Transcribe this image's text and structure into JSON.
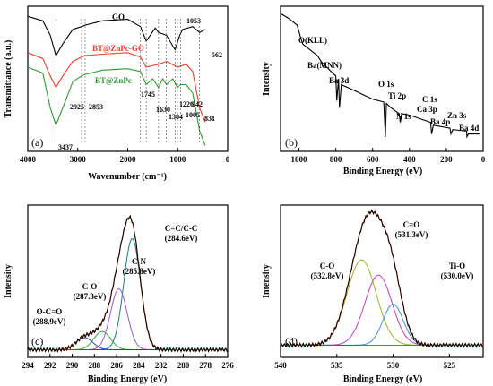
{
  "chart_data": [
    {
      "panel": "(a)",
      "type": "line",
      "xlabel": "Wavenumber (cm⁻¹)",
      "ylabel": "Transmittance (a.u.)",
      "xlim": [
        4000,
        0
      ],
      "x_ticks": [
        "4000",
        "3000",
        "2000",
        "1000",
        "0"
      ],
      "series": [
        {
          "name": "GO",
          "color": "#000000",
          "points": [
            [
              4000,
              0.93
            ],
            [
              3700,
              0.9
            ],
            [
              3550,
              0.8
            ],
            [
              3437,
              0.66
            ],
            [
              3300,
              0.74
            ],
            [
              3100,
              0.84
            ],
            [
              2925,
              0.86
            ],
            [
              2853,
              0.87
            ],
            [
              2500,
              0.9
            ],
            [
              2000,
              0.91
            ],
            [
              1745,
              0.86
            ],
            [
              1630,
              0.76
            ],
            [
              1450,
              0.85
            ],
            [
              1384,
              0.82
            ],
            [
              1226,
              0.8
            ],
            [
              1053,
              0.7
            ],
            [
              960,
              0.8
            ],
            [
              900,
              0.84
            ],
            [
              700,
              0.86
            ],
            [
              562,
              0.82
            ],
            [
              450,
              0.84
            ]
          ]
        },
        {
          "name": "BT@ZnPc-GO",
          "color": "#e8402f",
          "points": [
            [
              4000,
              0.68
            ],
            [
              3700,
              0.64
            ],
            [
              3550,
              0.52
            ],
            [
              3437,
              0.44
            ],
            [
              3300,
              0.52
            ],
            [
              3100,
              0.62
            ],
            [
              2925,
              0.65
            ],
            [
              2853,
              0.66
            ],
            [
              2500,
              0.67
            ],
            [
              2000,
              0.68
            ],
            [
              1745,
              0.65
            ],
            [
              1630,
              0.58
            ],
            [
              1384,
              0.6
            ],
            [
              1226,
              0.62
            ],
            [
              1005,
              0.58
            ],
            [
              831,
              0.6
            ],
            [
              700,
              0.55
            ],
            [
              562,
              0.3
            ],
            [
              450,
              0.2
            ]
          ]
        },
        {
          "name": "BT@ZnPc",
          "color": "#2e9b2e",
          "points": [
            [
              4000,
              0.58
            ],
            [
              3700,
              0.54
            ],
            [
              3550,
              0.3
            ],
            [
              3437,
              0.18
            ],
            [
              3300,
              0.3
            ],
            [
              3100,
              0.48
            ],
            [
              2925,
              0.52
            ],
            [
              2853,
              0.53
            ],
            [
              2500,
              0.56
            ],
            [
              2000,
              0.57
            ],
            [
              1745,
              0.55
            ],
            [
              1630,
              0.46
            ],
            [
              1500,
              0.5
            ],
            [
              1384,
              0.44
            ],
            [
              1300,
              0.5
            ],
            [
              1226,
              0.46
            ],
            [
              1100,
              0.5
            ],
            [
              1005,
              0.44
            ],
            [
              942,
              0.46
            ],
            [
              831,
              0.46
            ],
            [
              700,
              0.4
            ],
            [
              562,
              0.14
            ],
            [
              450,
              0.04
            ]
          ]
        }
      ],
      "markers": [
        "3437",
        "2925",
        "2853",
        "1745",
        "1630",
        "1384",
        "1226",
        "1005",
        "942",
        "831",
        "1053",
        "562"
      ]
    },
    {
      "panel": "(b)",
      "type": "line",
      "xlabel": "Binding Energy (eV)",
      "ylabel": "Intensity",
      "xlim": [
        1100,
        0
      ],
      "x_ticks": [
        "1000",
        "800",
        "600",
        "400",
        "200",
        "0"
      ],
      "series": [
        {
          "name": "",
          "color": "#000000",
          "points": [
            [
              1100,
              0.95
            ],
            [
              1060,
              0.92
            ],
            [
              1010,
              0.87
            ],
            [
              990,
              0.78
            ],
            [
              980,
              0.74
            ],
            [
              960,
              0.72
            ],
            [
              900,
              0.66
            ],
            [
              880,
              0.62
            ],
            [
              850,
              0.58
            ],
            [
              800,
              0.52
            ],
            [
              795,
              0.35
            ],
            [
              785,
              0.5
            ],
            [
              780,
              0.3
            ],
            [
              770,
              0.46
            ],
            [
              700,
              0.42
            ],
            [
              600,
              0.36
            ],
            [
              540,
              0.34
            ],
            [
              531,
              0.1
            ],
            [
              525,
              0.33
            ],
            [
              500,
              0.3
            ],
            [
              456,
              0.26
            ],
            [
              450,
              0.2
            ],
            [
              440,
              0.26
            ],
            [
              400,
              0.25
            ],
            [
              285,
              0.2
            ],
            [
              280,
              0.12
            ],
            [
              270,
              0.18
            ],
            [
              180,
              0.16
            ],
            [
              175,
              0.12
            ],
            [
              165,
              0.15
            ],
            [
              90,
              0.14
            ],
            [
              88,
              0.1
            ],
            [
              80,
              0.12
            ],
            [
              20,
              0.12
            ]
          ]
        }
      ],
      "peaks": [
        "O(KLL)",
        "Ba(MNN)",
        "Ba 3d",
        "O 1s",
        "Ti 2p",
        "N 1s",
        "Ca 3p",
        "C 1s",
        "Ba 4p",
        "Zn 3s",
        "Ba 4d"
      ]
    },
    {
      "panel": "(c)",
      "type": "line",
      "xlabel": "Binding Energy (eV)",
      "ylabel": "Intensity",
      "xlim": [
        294,
        276
      ],
      "x_ticks": [
        "294",
        "292",
        "290",
        "288",
        "286",
        "284",
        "282",
        "280",
        "278",
        "276"
      ],
      "components": [
        {
          "label": "C=C/C-C",
          "value": "(284.6eV)",
          "center": 284.6,
          "height": 0.73,
          "sigma": 0.75,
          "color": "#1a7a7a"
        },
        {
          "label": "C-N",
          "value": "(285.8eV)",
          "center": 285.8,
          "height": 0.4,
          "sigma": 0.75,
          "color": "#9b59d0"
        },
        {
          "label": "C-O",
          "value": "(287.3eV)",
          "center": 287.3,
          "height": 0.12,
          "sigma": 0.75,
          "color": "#3aa63a"
        },
        {
          "label": "O-C=O",
          "value": "(288.9eV)",
          "center": 288.9,
          "height": 0.08,
          "sigma": 0.75,
          "color": "#2440c8"
        }
      ],
      "baseline": 0.05
    },
    {
      "panel": "(d)",
      "type": "line",
      "xlabel": "Binding Energy (eV)",
      "ylabel": "Intensity",
      "xlim": [
        540,
        522
      ],
      "x_ticks": [
        "540",
        "535",
        "530",
        "525"
      ],
      "components": [
        {
          "label": "C=O",
          "value": "(531.3eV)",
          "center": 531.3,
          "height": 0.46,
          "sigma": 1.2,
          "color": "#c040c0"
        },
        {
          "label": "C-O",
          "value": "(532.8eV)",
          "center": 532.8,
          "height": 0.56,
          "sigma": 1.3,
          "color": "#9ab22e"
        },
        {
          "label": "Ti-O",
          "value": "(530.0eV)",
          "center": 530.0,
          "height": 0.27,
          "sigma": 0.9,
          "color": "#3b8fd4"
        }
      ],
      "baseline": 0.08
    }
  ],
  "labels": {
    "a": {
      "panel": "(a)",
      "xlabel": "Wavenumber (cm⁻¹)",
      "ylabel": "Transmittance (a.u.)",
      "legend_go": "GO",
      "legend_btgo": "BT@ZnPc-GO",
      "legend_bt": "BT@ZnPc",
      "m3437": "3437",
      "m2925": "2925",
      "m2853": "2853",
      "m1745": "1745",
      "m1630": "1630",
      "m1384": "1384",
      "m1226": "1226",
      "m1005": "1005",
      "m942": "942",
      "m831": "831",
      "m1053": "1053",
      "m562": "562"
    },
    "b": {
      "panel": "(b)",
      "xlabel": "Binding Energy (eV)",
      "ylabel": "Intensity",
      "okll": "O(KLL)",
      "bamnn": "Ba(MNN)",
      "ba3d": "Ba 3d",
      "o1s": "O 1s",
      "ti2p": "Ti 2p",
      "n1s": "N 1s",
      "ca3p": "Ca 3p",
      "c1s": "C 1s",
      "ba4p": "Ba 4p",
      "zn3s": "Zn 3s",
      "ba4d": "Ba 4d"
    },
    "c": {
      "panel": "(c)",
      "xlabel": "Binding Energy (eV)",
      "ylabel": "Intensity"
    },
    "d": {
      "panel": "(d)",
      "xlabel": "Binding Energy (eV)",
      "ylabel": "Intensity"
    }
  }
}
